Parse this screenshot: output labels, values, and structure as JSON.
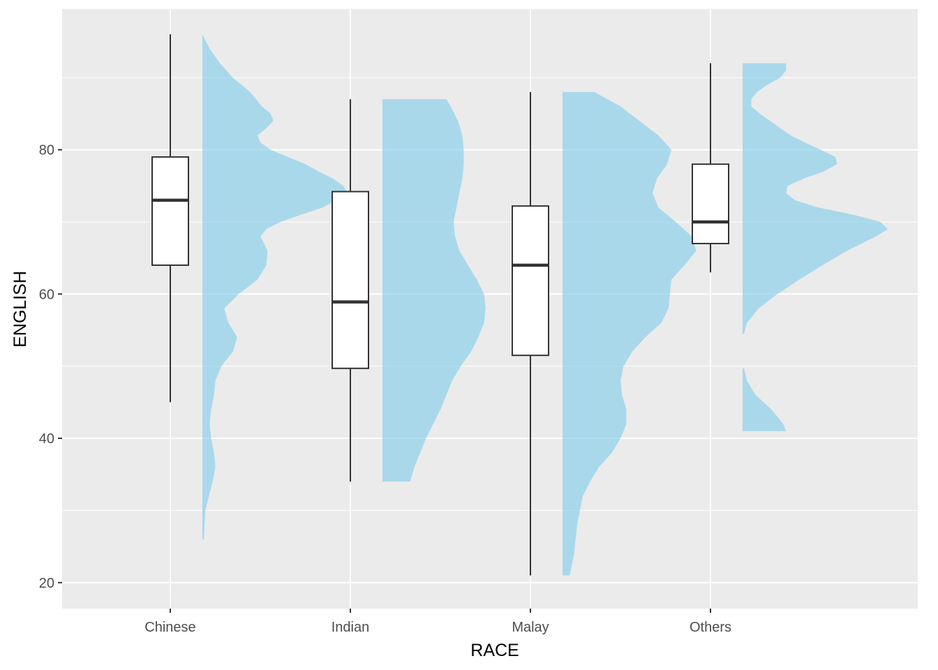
{
  "chart_data": {
    "type": "boxplot",
    "xlabel": "RACE",
    "ylabel": "ENGLISH",
    "categories": [
      "Chinese",
      "Indian",
      "Malay",
      "Others"
    ],
    "ylim": [
      16.4,
      99.5
    ],
    "yticks": [
      20,
      40,
      60,
      80
    ],
    "grid": true,
    "legend": "none",
    "colors": {
      "panel": "#EBEBEB",
      "grid": "#FFFFFF",
      "box_fill": "#FFFFFF",
      "box_line": "#333333",
      "density_fill": "#87CEEB",
      "tick": "#333333"
    },
    "boxes": [
      {
        "category": "Chinese",
        "min": 45,
        "q1": 64,
        "median": 73,
        "q3": 79,
        "max": 96
      },
      {
        "category": "Indian",
        "min": 34,
        "q1": 49.7,
        "median": 58.9,
        "q3": 74.2,
        "max": 87
      },
      {
        "category": "Malay",
        "min": 21,
        "q1": 51.5,
        "median": 64,
        "q3": 72.2,
        "max": 88
      },
      {
        "category": "Others",
        "min": 63,
        "q1": 67,
        "median": 70,
        "q3": 78,
        "max": 92
      }
    ],
    "densities": [
      {
        "category": "Chinese",
        "ymin": 26,
        "ymax": 96,
        "y": [
          26,
          30,
          34,
          36,
          38,
          40,
          42,
          44,
          46,
          48,
          50,
          52,
          54,
          56,
          58,
          60,
          62,
          64,
          66,
          68,
          69,
          70,
          71,
          72,
          73,
          74,
          75,
          76,
          77,
          78,
          79,
          80,
          81,
          82,
          83,
          84,
          85,
          86,
          88,
          90,
          92,
          94,
          96
        ],
        "density": [
          0.01,
          0.02,
          0.07,
          0.09,
          0.08,
          0.06,
          0.05,
          0.06,
          0.08,
          0.09,
          0.13,
          0.21,
          0.24,
          0.18,
          0.15,
          0.25,
          0.38,
          0.44,
          0.45,
          0.4,
          0.44,
          0.54,
          0.68,
          0.83,
          0.92,
          1.0,
          0.97,
          0.9,
          0.8,
          0.71,
          0.59,
          0.47,
          0.4,
          0.38,
          0.44,
          0.49,
          0.47,
          0.41,
          0.33,
          0.21,
          0.12,
          0.05,
          0.0
        ]
      },
      {
        "category": "Indian",
        "ymin": 34,
        "ymax": 87,
        "y": [
          34,
          36,
          38,
          40,
          42,
          44,
          46,
          48,
          50,
          52,
          54,
          56,
          58,
          60,
          62,
          64,
          66,
          68,
          70,
          72,
          74,
          76,
          78,
          80,
          82,
          84,
          86,
          87
        ],
        "density": [
          0.19,
          0.22,
          0.26,
          0.3,
          0.35,
          0.4,
          0.44,
          0.48,
          0.54,
          0.61,
          0.66,
          0.7,
          0.71,
          0.7,
          0.65,
          0.59,
          0.53,
          0.5,
          0.49,
          0.51,
          0.53,
          0.55,
          0.56,
          0.56,
          0.55,
          0.52,
          0.47,
          0.44
        ]
      },
      {
        "category": "Malay",
        "ymin": 21,
        "ymax": 88,
        "y": [
          21,
          24,
          28,
          32,
          34,
          36,
          38,
          40,
          42,
          44,
          46,
          48,
          50,
          52,
          54,
          56,
          58,
          60,
          62,
          64,
          66,
          68,
          70,
          72,
          74,
          76,
          78,
          80,
          82,
          84,
          86,
          88
        ],
        "density": [
          0.05,
          0.08,
          0.1,
          0.14,
          0.19,
          0.25,
          0.34,
          0.4,
          0.44,
          0.44,
          0.41,
          0.4,
          0.42,
          0.48,
          0.57,
          0.68,
          0.73,
          0.74,
          0.75,
          0.84,
          0.92,
          0.89,
          0.78,
          0.66,
          0.62,
          0.65,
          0.72,
          0.75,
          0.66,
          0.53,
          0.4,
          0.22
        ]
      },
      {
        "category": "Others",
        "segments": [
          {
            "y": [
              41,
              42,
              44,
              46,
              48,
              49.7
            ],
            "density": [
              0.3,
              0.28,
              0.2,
              0.09,
              0.03,
              0.01
            ]
          },
          {
            "y": [
              54.5,
              56,
              58,
              60,
              62,
              64,
              66,
              68,
              69,
              70,
              71,
              72,
              73,
              74,
              75,
              76,
              77,
              78,
              79,
              80,
              81,
              82,
              83,
              84,
              85,
              86,
              87,
              88,
              89,
              90,
              91,
              92
            ],
            "density": [
              0.01,
              0.03,
              0.11,
              0.24,
              0.39,
              0.55,
              0.72,
              0.92,
              1.0,
              0.95,
              0.76,
              0.52,
              0.36,
              0.3,
              0.31,
              0.42,
              0.56,
              0.65,
              0.64,
              0.54,
              0.43,
              0.33,
              0.26,
              0.19,
              0.12,
              0.06,
              0.06,
              0.1,
              0.17,
              0.26,
              0.3,
              0.3
            ]
          }
        ]
      }
    ]
  }
}
